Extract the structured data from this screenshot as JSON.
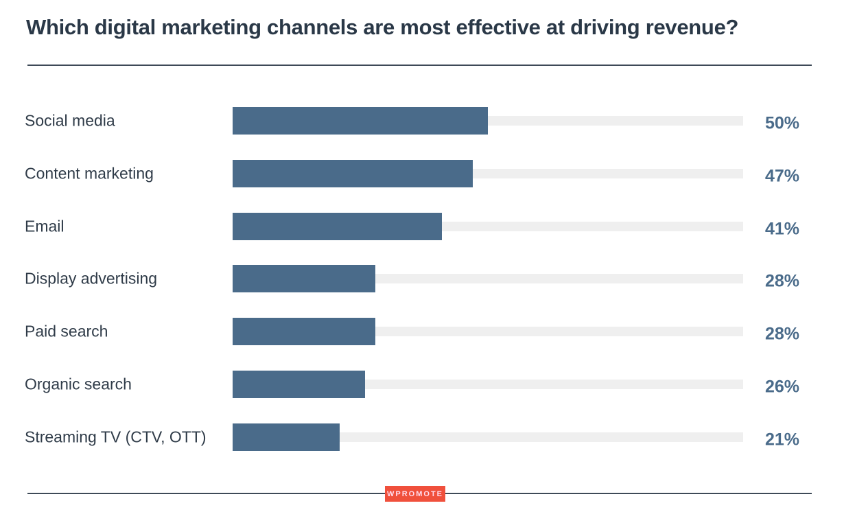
{
  "chart_data": {
    "type": "bar",
    "orientation": "horizontal",
    "title": "Which digital marketing channels are most effective at driving revenue?",
    "categories": [
      "Social media",
      "Content marketing",
      "Email",
      "Display advertising",
      "Paid search",
      "Organic search",
      "Streaming TV (CTV, OTT)"
    ],
    "values": [
      50,
      47,
      41,
      28,
      28,
      26,
      21
    ],
    "value_labels": [
      "50%",
      "47%",
      "41%",
      "28%",
      "28%",
      "26%",
      "21%"
    ],
    "xlim": [
      0,
      100
    ],
    "unit": "%",
    "grid": false,
    "colors": {
      "bar": "#4a6b8a",
      "track": "#efefef",
      "title": "#2a3847",
      "logo": "#f0503c"
    }
  },
  "logo": "WPROMOTE"
}
